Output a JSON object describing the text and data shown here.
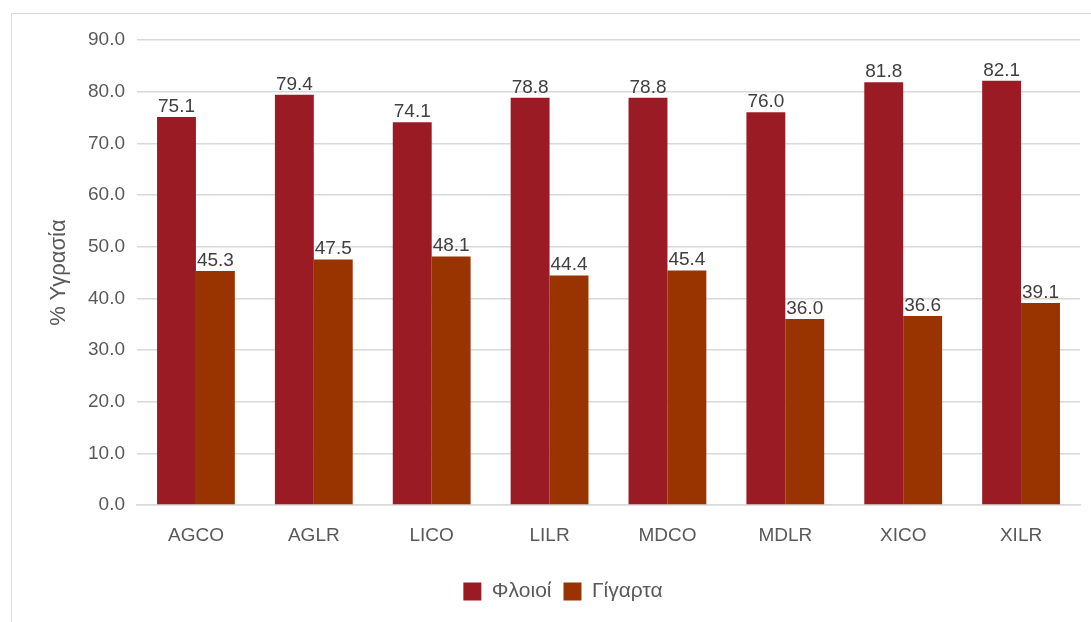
{
  "chart_data": {
    "type": "bar",
    "ylabel": "% Υγρασία",
    "categories": [
      "AGCO",
      "AGLR",
      "LICO",
      "LILR",
      "MDCO",
      "MDLR",
      "XICO",
      "XILR"
    ],
    "series": [
      {
        "name": "Φλοιοί",
        "color": "#9b1b24",
        "values": [
          75.1,
          79.4,
          74.1,
          78.8,
          78.8,
          76.0,
          81.8,
          82.1
        ],
        "value_labels": [
          "75.1",
          "79.4",
          "74.1",
          "78.8",
          "78.8",
          "76.0",
          "81.8",
          "82.1"
        ]
      },
      {
        "name": "Γίγαρτα",
        "color": "#993300",
        "values": [
          45.3,
          47.5,
          48.1,
          44.4,
          45.4,
          36.0,
          36.6,
          39.1
        ],
        "value_labels": [
          "45.3",
          "47.5",
          "48.1",
          "44.4",
          "45.4",
          "36.0",
          "36.6",
          "39.1"
        ]
      }
    ],
    "ylim": [
      0,
      90
    ],
    "yticks": [
      {
        "value": 0,
        "label": "0.0"
      },
      {
        "value": 10,
        "label": "10.0"
      },
      {
        "value": 20,
        "label": "20.0"
      },
      {
        "value": 30,
        "label": "30.0"
      },
      {
        "value": 40,
        "label": "40.0"
      },
      {
        "value": 50,
        "label": "50.0"
      },
      {
        "value": 60,
        "label": "60.0"
      },
      {
        "value": 70,
        "label": "70.0"
      },
      {
        "value": 80,
        "label": "80.0"
      },
      {
        "value": 90,
        "label": "90.0"
      }
    ],
    "grid": "y",
    "legend": "bottom"
  }
}
